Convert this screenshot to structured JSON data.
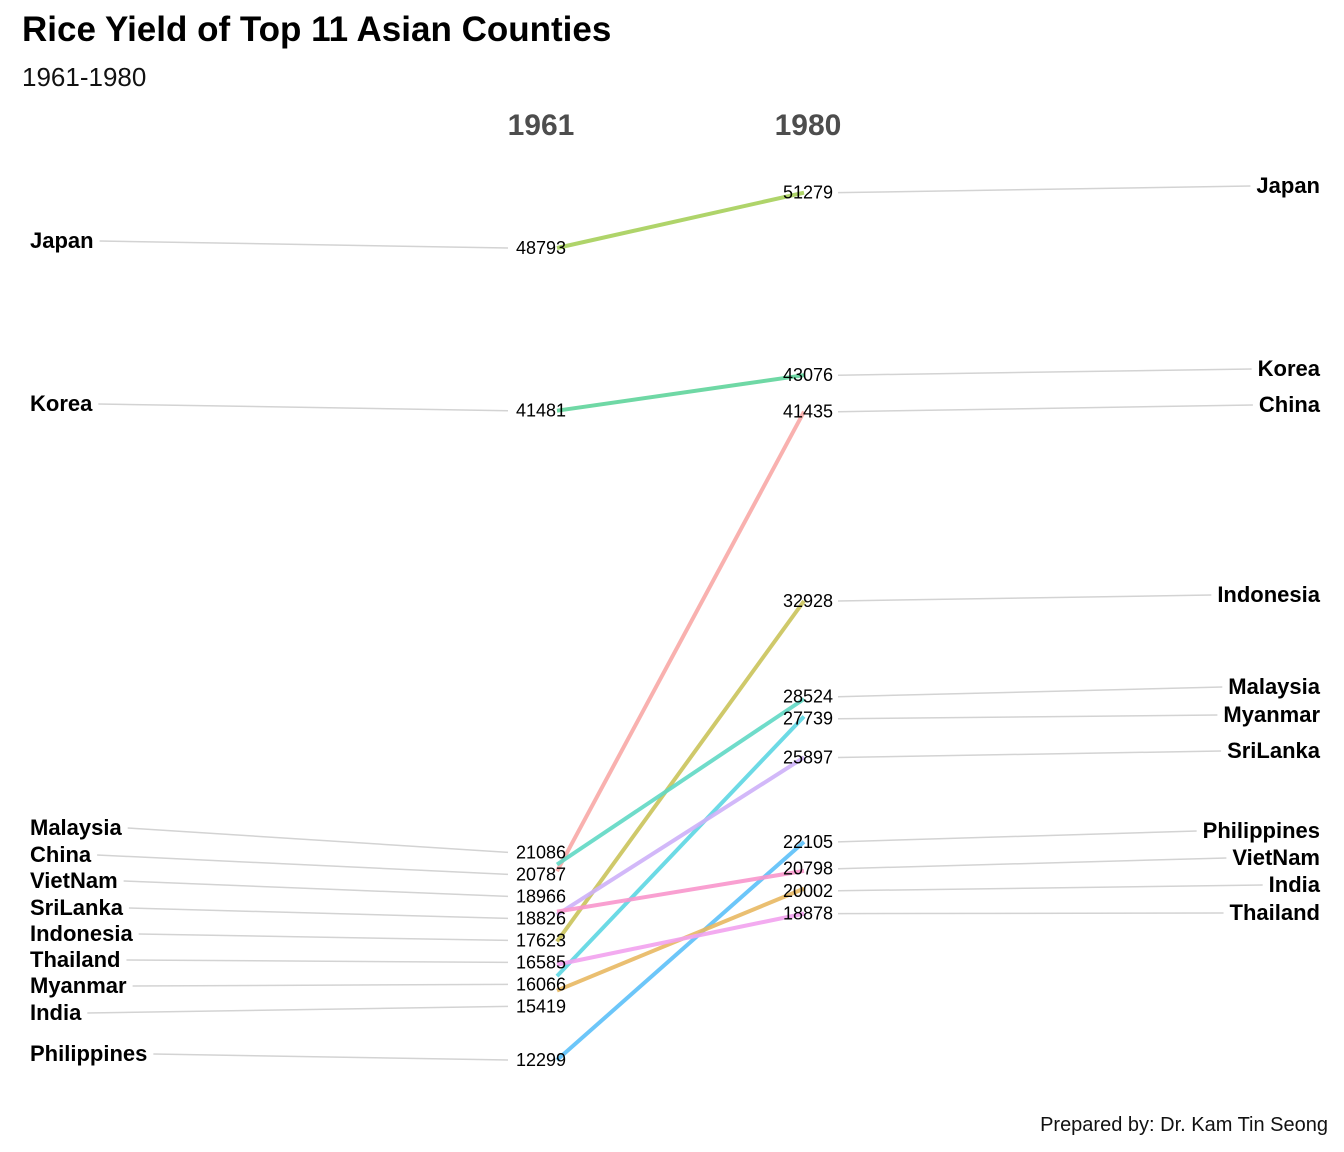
{
  "title": "Rice Yield of Top 11 Asian Counties",
  "subtitle": "1961-1980",
  "caption": "Prepared by: Dr. Kam Tin Seong",
  "chart_data": {
    "type": "slope",
    "x": [
      "1961",
      "1980"
    ],
    "series": [
      {
        "name": "Japan",
        "values": [
          48793,
          51279
        ],
        "color": "#a6cf5a"
      },
      {
        "name": "Korea",
        "values": [
          41481,
          43076
        ],
        "color": "#5fd49b"
      },
      {
        "name": "China",
        "values": [
          20787,
          41435
        ],
        "color": "#f8a8a6"
      },
      {
        "name": "Indonesia",
        "values": [
          17623,
          32928
        ],
        "color": "#cac35a"
      },
      {
        "name": "Malaysia",
        "values": [
          21086,
          28524
        ],
        "color": "#5fd8c4"
      },
      {
        "name": "Myanmar",
        "values": [
          16066,
          27739
        ],
        "color": "#5cd6e2"
      },
      {
        "name": "SriLanka",
        "values": [
          18826,
          25897
        ],
        "color": "#cdb0f8"
      },
      {
        "name": "Philippines",
        "values": [
          12299,
          22105
        ],
        "color": "#5cc0f8"
      },
      {
        "name": "VietNam",
        "values": [
          18966,
          20798
        ],
        "color": "#f896cc"
      },
      {
        "name": "India",
        "values": [
          15419,
          20002
        ],
        "color": "#e8b862"
      },
      {
        "name": "Thailand",
        "values": [
          16585,
          18878
        ],
        "color": "#f2a2ee"
      }
    ],
    "grid": false,
    "legend": "none"
  }
}
